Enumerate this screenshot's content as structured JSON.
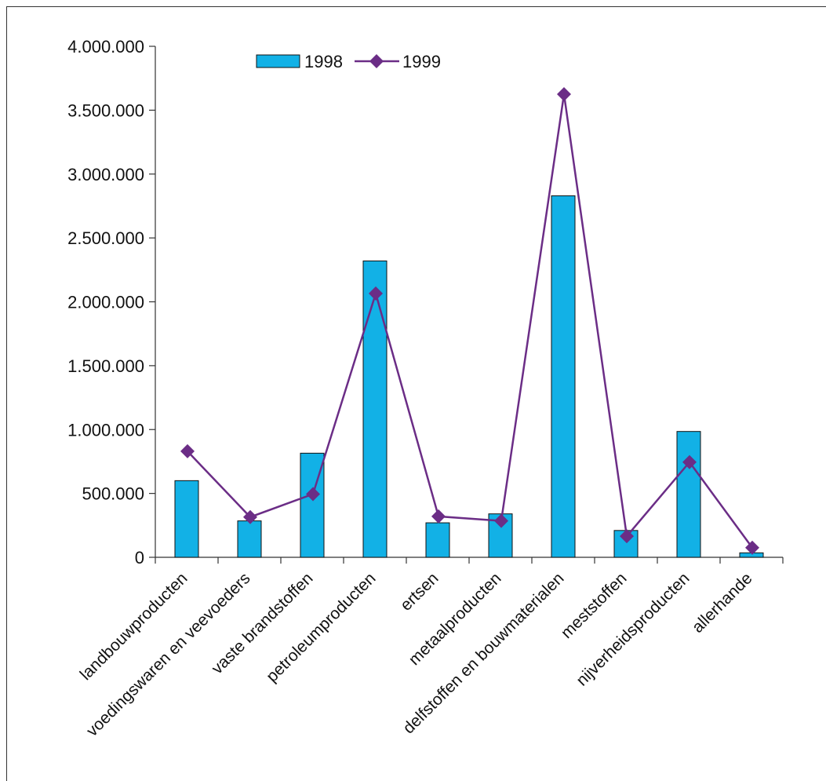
{
  "chart_data": {
    "type": "bar",
    "categories": [
      "landbouwproducten",
      "voedingswaren en veevoeders",
      "vaste brandstoffen",
      "petroleumproducten",
      "ertsen",
      "metaalproducten",
      "delfstoffen en bouwmaterialen",
      "meststoffen",
      "nijverheidsproducten",
      "allerhande"
    ],
    "series": [
      {
        "name": "1998",
        "kind": "bar",
        "color": "#12b1e6",
        "values": [
          600000,
          285000,
          815000,
          2320000,
          270000,
          340000,
          2830000,
          210000,
          985000,
          35000
        ]
      },
      {
        "name": "1999",
        "kind": "line",
        "color": "#6b2d86",
        "marker": "diamond",
        "values": [
          830000,
          315000,
          495000,
          2065000,
          320000,
          285000,
          3625000,
          165000,
          745000,
          75000
        ]
      }
    ],
    "yticks": [
      "0",
      "500.000",
      "1.000.000",
      "1.500.000",
      "2.000.000",
      "2.500.000",
      "3.000.000",
      "3.500.000",
      "4.000.000"
    ],
    "ylim": [
      0,
      4000000
    ],
    "title": "",
    "xlabel": "",
    "ylabel": "",
    "legend": "top-center",
    "grid": false
  }
}
